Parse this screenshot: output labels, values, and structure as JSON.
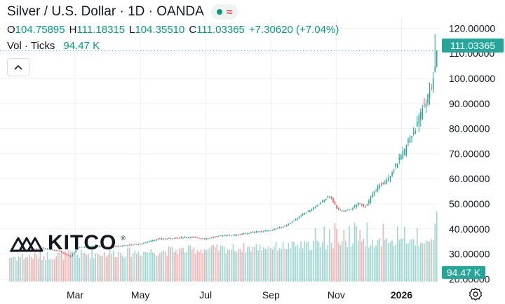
{
  "header": {
    "title": "Silver / U.S. Dollar · 1D · OANDA",
    "status_symbol": "≈"
  },
  "ohlc": {
    "o_label": "O",
    "o_value": "104.75895",
    "h_label": "H",
    "h_value": "111.18315",
    "l_label": "L",
    "l_value": "104.35510",
    "c_label": "C",
    "c_value": "111.03365",
    "change": "+7.30620 (+7.04%)"
  },
  "volume": {
    "label": "Vol · Ticks",
    "value": "94.47 K"
  },
  "last_price_tag": "111.03365",
  "volume_tag": "94.47 K",
  "logo": {
    "text": "KITCO",
    "reg": "®"
  },
  "icons": {
    "collapse": "chevron-up-icon",
    "settings": "gear-icon"
  },
  "colors": {
    "up": "#26a69a",
    "down": "#ef5350",
    "up_text": "#089981",
    "tag_bg": "#26a69a"
  },
  "chart_data": {
    "type": "candlestick",
    "y_axis": {
      "ticks": [
        "120.00000",
        "110.00000",
        "100.00000",
        "90.00000",
        "80.00000",
        "70.00000",
        "60.00000",
        "50.00000",
        "40.00000",
        "30.00000",
        "20.00000"
      ],
      "tick_values": [
        120,
        110,
        100,
        90,
        80,
        70,
        60,
        50,
        40,
        30,
        20
      ],
      "range": [
        19,
        124
      ]
    },
    "x_axis": {
      "labels": [
        "Mar",
        "May",
        "Jul",
        "Sep",
        "Nov",
        "2026"
      ],
      "label_months": [
        2,
        4,
        6,
        8,
        10,
        12
      ]
    },
    "series": [
      {
        "values": [
          [
            0,
            31.0
          ],
          [
            0.6,
            31.6
          ],
          [
            1.0,
            32.2
          ],
          [
            1.5,
            31.4
          ],
          [
            1.85,
            28.8
          ],
          [
            2.1,
            32.7
          ],
          [
            2.6,
            33.2
          ],
          [
            3.0,
            32.6
          ],
          [
            3.5,
            33.4
          ],
          [
            4.0,
            34.0
          ],
          [
            4.5,
            35.9
          ],
          [
            5.0,
            36.3
          ],
          [
            5.5,
            36.8
          ],
          [
            6.0,
            36.1
          ],
          [
            6.5,
            37.4
          ],
          [
            7.0,
            37.7
          ],
          [
            7.5,
            38.8
          ],
          [
            8.0,
            39.4
          ],
          [
            8.5,
            41.6
          ],
          [
            9.0,
            46.0
          ],
          [
            9.35,
            48.8
          ],
          [
            9.6,
            51.2
          ],
          [
            9.8,
            53.2
          ],
          [
            10.0,
            48.4
          ],
          [
            10.2,
            47.0
          ],
          [
            10.5,
            48.4
          ],
          [
            10.7,
            50.5
          ],
          [
            10.9,
            49.0
          ],
          [
            11.2,
            55.5
          ],
          [
            11.5,
            59.0
          ],
          [
            11.7,
            62.5
          ],
          [
            11.9,
            67.0
          ],
          [
            12.1,
            71.5
          ],
          [
            12.25,
            76.5
          ],
          [
            12.4,
            79.0
          ],
          [
            12.5,
            82.8
          ],
          [
            12.65,
            88.5
          ],
          [
            12.8,
            92.5
          ],
          [
            12.9,
            95.0
          ],
          [
            13.0,
            103.7
          ],
          [
            13.08,
            111.03
          ]
        ],
        "ohlc_highlights": {
          "open": 104.75895,
          "high": 111.18315,
          "low": 104.3551,
          "close": 111.03365
        },
        "spike_high": 117.6
      }
    ],
    "volume_series": {
      "name": "Vol · Ticks",
      "last": 94.47,
      "unit": "K"
    }
  }
}
